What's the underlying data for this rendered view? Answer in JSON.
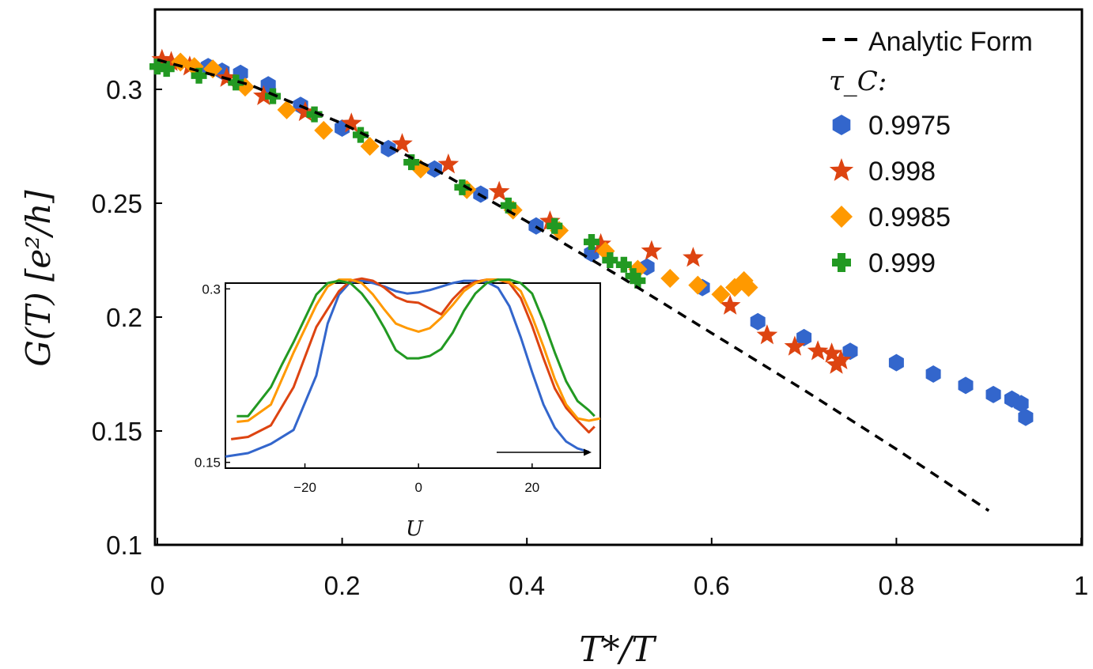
{
  "chart_data": {
    "type": "scatter",
    "xlabel": "T*/T",
    "ylabel": "G(T) [e²/h]",
    "xlim": [
      0,
      1
    ],
    "ylim": [
      0.1,
      0.335
    ],
    "x_ticks": [
      "0",
      "0.2",
      "0.4",
      "0.6",
      "0.8",
      "1"
    ],
    "y_ticks": [
      "0.1",
      "0.15",
      "0.2",
      "0.25",
      "0.3"
    ],
    "legend": {
      "analytic_label": "Analytic Form",
      "group_title": "τ_C:",
      "position": "top-right"
    },
    "analytic": {
      "name": "Analytic Form",
      "style": "dashed",
      "color": "#000000",
      "x": [
        0,
        0.1,
        0.2,
        0.3,
        0.4,
        0.5,
        0.6,
        0.7,
        0.8,
        0.9
      ],
      "y": [
        0.313,
        0.302,
        0.285,
        0.265,
        0.242,
        0.218,
        0.193,
        0.168,
        0.142,
        0.115
      ]
    },
    "series": [
      {
        "name": "0.9975",
        "color": "#3366cc",
        "marker": "hexagon",
        "x": [
          0.055,
          0.07,
          0.09,
          0.12,
          0.155,
          0.2,
          0.25,
          0.3,
          0.35,
          0.41,
          0.47,
          0.53,
          0.59,
          0.65,
          0.7,
          0.75,
          0.8,
          0.84,
          0.875,
          0.905,
          0.925,
          0.935,
          0.94
        ],
        "y": [
          0.31,
          0.308,
          0.307,
          0.302,
          0.293,
          0.283,
          0.274,
          0.265,
          0.254,
          0.24,
          0.228,
          0.222,
          0.213,
          0.198,
          0.191,
          0.185,
          0.18,
          0.175,
          0.17,
          0.166,
          0.164,
          0.162,
          0.156
        ]
      },
      {
        "name": "0.998",
        "color": "#dd4411",
        "marker": "star",
        "x": [
          0.005,
          0.015,
          0.035,
          0.075,
          0.115,
          0.16,
          0.21,
          0.265,
          0.315,
          0.37,
          0.425,
          0.48,
          0.535,
          0.58,
          0.62,
          0.66,
          0.69,
          0.715,
          0.73,
          0.735,
          0.74
        ],
        "y": [
          0.313,
          0.312,
          0.31,
          0.305,
          0.297,
          0.29,
          0.285,
          0.276,
          0.267,
          0.255,
          0.242,
          0.232,
          0.229,
          0.226,
          0.205,
          0.192,
          0.187,
          0.185,
          0.184,
          0.179,
          0.181
        ]
      },
      {
        "name": "0.9985",
        "color": "#ff9900",
        "marker": "diamond",
        "x": [
          0.025,
          0.04,
          0.06,
          0.095,
          0.14,
          0.18,
          0.23,
          0.285,
          0.335,
          0.385,
          0.435,
          0.485,
          0.52,
          0.555,
          0.585,
          0.61,
          0.625,
          0.635,
          0.64
        ],
        "y": [
          0.312,
          0.31,
          0.309,
          0.301,
          0.291,
          0.282,
          0.275,
          0.265,
          0.256,
          0.247,
          0.238,
          0.229,
          0.221,
          0.217,
          0.214,
          0.21,
          0.213,
          0.216,
          0.213
        ]
      },
      {
        "name": "0.999",
        "color": "#229922",
        "marker": "plus",
        "x": [
          0,
          0.01,
          0.045,
          0.085,
          0.125,
          0.17,
          0.22,
          0.275,
          0.33,
          0.38,
          0.43,
          0.47,
          0.49,
          0.505,
          0.515,
          0.52
        ],
        "y": [
          0.31,
          0.309,
          0.306,
          0.303,
          0.297,
          0.289,
          0.28,
          0.268,
          0.257,
          0.249,
          0.24,
          0.233,
          0.225,
          0.223,
          0.218,
          0.216
        ]
      }
    ],
    "inset": {
      "type": "line",
      "xlabel": "U",
      "xlim": [
        -34,
        32
      ],
      "ylim": [
        0.145,
        0.305
      ],
      "x_ticks": [
        "−20",
        "0",
        "20"
      ],
      "x_tick_values": [
        -20,
        0,
        20
      ],
      "y_ticks": [
        "0.15",
        "0.3"
      ],
      "y_tick_values": [
        0.15,
        0.3
      ],
      "series": [
        {
          "name": "0.9975",
          "color": "#3366cc",
          "x": [
            -34,
            -30,
            -26,
            -22,
            -18,
            -16,
            -14,
            -12,
            -10,
            -8,
            -6,
            -4,
            -2,
            0,
            2,
            4,
            6,
            8,
            10,
            12,
            14,
            16,
            18,
            20,
            22,
            24,
            26,
            28,
            30
          ],
          "y": [
            0.155,
            0.158,
            0.166,
            0.178,
            0.225,
            0.27,
            0.295,
            0.306,
            0.307,
            0.305,
            0.302,
            0.298,
            0.296,
            0.297,
            0.299,
            0.302,
            0.305,
            0.307,
            0.307,
            0.306,
            0.301,
            0.285,
            0.258,
            0.228,
            0.2,
            0.18,
            0.168,
            0.162,
            0.159
          ]
        },
        {
          "name": "0.998",
          "color": "#dd4411",
          "x": [
            -33,
            -30,
            -26,
            -22,
            -18,
            -14,
            -12,
            -10,
            -8,
            -6,
            -4,
            -2,
            0,
            2,
            4,
            6,
            8,
            10,
            12,
            14,
            16,
            18,
            20,
            22,
            24,
            26,
            28,
            30,
            31
          ],
          "y": [
            0.17,
            0.172,
            0.182,
            0.215,
            0.267,
            0.298,
            0.307,
            0.309,
            0.307,
            0.301,
            0.293,
            0.289,
            0.288,
            0.283,
            0.278,
            0.291,
            0.301,
            0.306,
            0.308,
            0.308,
            0.305,
            0.292,
            0.268,
            0.24,
            0.214,
            0.197,
            0.186,
            0.176,
            0.181
          ]
        },
        {
          "name": "0.9985",
          "color": "#ff9900",
          "x": [
            -32,
            -30,
            -26,
            -22,
            -18,
            -16,
            -14,
            -12,
            -10,
            -8,
            -6,
            -4,
            -2,
            0,
            2,
            4,
            6,
            8,
            10,
            12,
            14,
            16,
            18,
            20,
            22,
            24,
            26,
            28,
            30,
            32
          ],
          "y": [
            0.185,
            0.186,
            0.2,
            0.245,
            0.286,
            0.302,
            0.308,
            0.308,
            0.305,
            0.295,
            0.282,
            0.27,
            0.266,
            0.263,
            0.266,
            0.275,
            0.286,
            0.298,
            0.305,
            0.308,
            0.308,
            0.306,
            0.298,
            0.276,
            0.25,
            0.222,
            0.2,
            0.188,
            0.186,
            0.188
          ]
        },
        {
          "name": "0.999",
          "color": "#229922",
          "x": [
            -32,
            -30,
            -26,
            -24,
            -22,
            -18,
            -16,
            -14,
            -12,
            -10,
            -8,
            -6,
            -4,
            -2,
            0,
            2,
            4,
            6,
            8,
            10,
            12,
            14,
            16,
            18,
            20,
            22,
            24,
            26,
            28,
            30,
            31
          ],
          "y": [
            0.19,
            0.19,
            0.215,
            0.235,
            0.254,
            0.295,
            0.305,
            0.307,
            0.305,
            0.296,
            0.283,
            0.266,
            0.247,
            0.24,
            0.24,
            0.242,
            0.248,
            0.262,
            0.281,
            0.296,
            0.305,
            0.308,
            0.308,
            0.305,
            0.296,
            0.272,
            0.245,
            0.22,
            0.203,
            0.195,
            0.19
          ]
        }
      ]
    }
  }
}
